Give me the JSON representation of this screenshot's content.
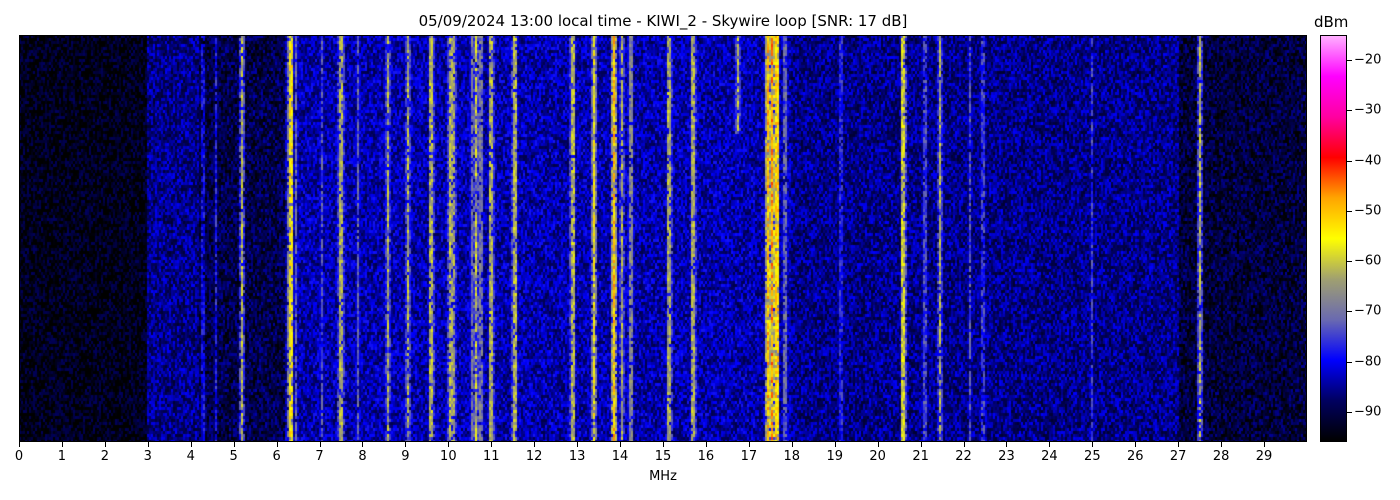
{
  "chart_data": {
    "type": "heatmap",
    "title": "05/09/2024 13:00 local time - KIWI_2 - Skywire loop [SNR: 17 dB]",
    "xlabel": "MHz",
    "ylabel": "",
    "xlim": [
      0,
      30
    ],
    "xticks": [
      0,
      1,
      2,
      3,
      4,
      5,
      6,
      7,
      8,
      9,
      10,
      11,
      12,
      13,
      14,
      15,
      16,
      17,
      18,
      19,
      20,
      21,
      22,
      23,
      24,
      25,
      26,
      27,
      28,
      29
    ],
    "colorbar": {
      "label": "dBm",
      "range": [
        -96,
        -15
      ],
      "ticks": [
        -20,
        -30,
        -40,
        -50,
        -60,
        -70,
        -80,
        -90
      ],
      "colormap": [
        "#000000",
        "#000060",
        "#0000ff",
        "#6a6ab0",
        "#a0a070",
        "#ffff00",
        "#ffa500",
        "#ff0000",
        "#ff00a0",
        "#ff00ff",
        "#ffb0ff"
      ]
    },
    "noise_floor_dbm": [
      {
        "from_mhz": 0,
        "to_mhz": 3,
        "dbm": -94
      },
      {
        "from_mhz": 3,
        "to_mhz": 4.2,
        "dbm": -86
      },
      {
        "from_mhz": 4.2,
        "to_mhz": 6.2,
        "dbm": -90
      },
      {
        "from_mhz": 6.2,
        "to_mhz": 18,
        "dbm": -84
      },
      {
        "from_mhz": 18,
        "to_mhz": 27,
        "dbm": -86
      },
      {
        "from_mhz": 27,
        "to_mhz": 30,
        "dbm": -91
      }
    ],
    "signals": [
      {
        "mhz": 4.28,
        "dbm": -80
      },
      {
        "mhz": 4.6,
        "dbm": -78
      },
      {
        "mhz": 5.2,
        "dbm": -62
      },
      {
        "mhz": 6.33,
        "dbm": -55
      },
      {
        "mhz": 6.45,
        "dbm": -72
      },
      {
        "mhz": 7.05,
        "dbm": -74
      },
      {
        "mhz": 7.5,
        "dbm": -63
      },
      {
        "mhz": 7.9,
        "dbm": -72
      },
      {
        "mhz": 8.6,
        "dbm": -63
      },
      {
        "mhz": 9.05,
        "dbm": -62
      },
      {
        "mhz": 9.6,
        "dbm": -62
      },
      {
        "mhz": 10.05,
        "dbm": -62
      },
      {
        "mhz": 10.12,
        "dbm": -64
      },
      {
        "mhz": 10.55,
        "dbm": -70
      },
      {
        "mhz": 10.65,
        "dbm": -60
      },
      {
        "mhz": 10.75,
        "dbm": -70
      },
      {
        "mhz": 11.0,
        "dbm": -63
      },
      {
        "mhz": 11.55,
        "dbm": -62
      },
      {
        "mhz": 12.9,
        "dbm": -62
      },
      {
        "mhz": 13.4,
        "dbm": -56
      },
      {
        "mhz": 13.85,
        "dbm": -50
      },
      {
        "mhz": 14.05,
        "dbm": -63
      },
      {
        "mhz": 14.25,
        "dbm": -68
      },
      {
        "mhz": 15.15,
        "dbm": -63
      },
      {
        "mhz": 15.7,
        "dbm": -63
      },
      {
        "mhz": 16.75,
        "dbm": -62
      },
      {
        "mhz": 17.45,
        "dbm": -50
      },
      {
        "mhz": 17.55,
        "dbm": -47
      },
      {
        "mhz": 17.65,
        "dbm": -52
      },
      {
        "mhz": 17.85,
        "dbm": -72
      },
      {
        "mhz": 19.15,
        "dbm": -78
      },
      {
        "mhz": 20.6,
        "dbm": -60
      },
      {
        "mhz": 21.1,
        "dbm": -75
      },
      {
        "mhz": 21.45,
        "dbm": -63
      },
      {
        "mhz": 22.15,
        "dbm": -74
      },
      {
        "mhz": 22.45,
        "dbm": -76
      },
      {
        "mhz": 25.0,
        "dbm": -76
      },
      {
        "mhz": 27.5,
        "dbm": -62
      }
    ]
  }
}
